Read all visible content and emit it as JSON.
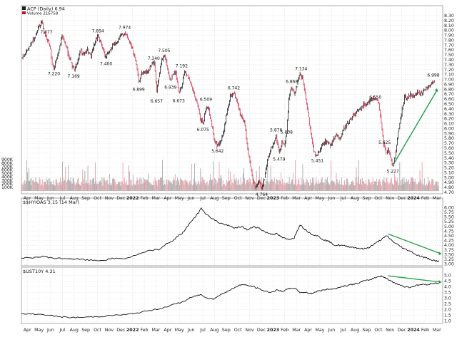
{
  "chart_data": [
    {
      "type": "candlestick",
      "title": "ACP (Daily) 6.94",
      "volume_label": "Volume 216758",
      "y_ticks": [
        "8.30",
        "8.20",
        "8.10",
        "8.00",
        "7.90",
        "7.80",
        "7.70",
        "7.60",
        "7.50",
        "7.40",
        "7.30",
        "7.20",
        "7.10",
        "7.00",
        "6.90",
        "6.80",
        "6.70",
        "6.60",
        "6.50",
        "6.40",
        "6.30",
        "6.20",
        "6.10",
        "6.00",
        "5.90",
        "5.80",
        "5.70",
        "5.60",
        "5.50",
        "5.40",
        "5.30",
        "5.20",
        "5.10",
        "5.00",
        "4.90",
        "4.80",
        "4.70"
      ],
      "ylim": [
        4.7,
        8.3
      ],
      "volume_ticks": [
        "900K",
        "800K",
        "700K",
        "600K",
        "500K",
        "400K",
        "300K",
        "200K",
        "100K"
      ],
      "volume_max": 900000,
      "price_path": [
        [
          0,
          7.45
        ],
        [
          0.8,
          7.55
        ],
        [
          1.6,
          7.7
        ],
        [
          2.4,
          7.9
        ],
        [
          3.0,
          8.1
        ],
        [
          3.5,
          8.18
        ],
        [
          4.0,
          7.95
        ],
        [
          4.5,
          7.8
        ],
        [
          5.0,
          7.6
        ],
        [
          5.3,
          7.3
        ],
        [
          5.6,
          7.22
        ],
        [
          6.0,
          7.4
        ],
        [
          6.5,
          7.6
        ],
        [
          7.0,
          7.88
        ],
        [
          7.5,
          7.75
        ],
        [
          8.0,
          7.55
        ],
        [
          8.5,
          7.35
        ],
        [
          9.0,
          7.2
        ],
        [
          9.5,
          7.3
        ],
        [
          10.2,
          7.6
        ],
        [
          10.8,
          7.5
        ],
        [
          11.4,
          7.6
        ],
        [
          12.0,
          7.45
        ],
        [
          12.5,
          7.7
        ],
        [
          13.2,
          7.9
        ],
        [
          13.8,
          7.7
        ],
        [
          14.5,
          7.45
        ],
        [
          15.2,
          7.6
        ],
        [
          15.8,
          7.7
        ],
        [
          16.5,
          7.75
        ],
        [
          17.2,
          7.9
        ],
        [
          17.8,
          7.95
        ],
        [
          18.5,
          7.8
        ],
        [
          19.2,
          7.6
        ],
        [
          19.8,
          7.3
        ],
        [
          20.2,
          6.95
        ],
        [
          20.6,
          7.1
        ],
        [
          21.2,
          7.15
        ],
        [
          21.8,
          7.15
        ],
        [
          22.4,
          7.3
        ],
        [
          22.9,
          7.35
        ],
        [
          23.3,
          6.75
        ],
        [
          23.7,
          7.05
        ],
        [
          24.2,
          7.4
        ],
        [
          24.7,
          7.5
        ],
        [
          25.2,
          7.2
        ],
        [
          25.7,
          7.0
        ],
        [
          26.1,
          7.1
        ],
        [
          26.6,
          7.15
        ],
        [
          27.1,
          6.75
        ],
        [
          27.6,
          6.85
        ],
        [
          28.1,
          7.15
        ],
        [
          28.6,
          7.1
        ],
        [
          29.0,
          6.95
        ],
        [
          29.5,
          6.8
        ],
        [
          30.0,
          6.6
        ],
        [
          30.4,
          6.45
        ],
        [
          30.8,
          6.2
        ],
        [
          31.3,
          6.1
        ],
        [
          31.8,
          6.45
        ],
        [
          32.3,
          6.4
        ],
        [
          32.7,
          6.15
        ],
        [
          33.2,
          5.8
        ],
        [
          33.7,
          5.65
        ],
        [
          34.2,
          5.7
        ],
        [
          34.8,
          5.9
        ],
        [
          35.4,
          6.3
        ],
        [
          36.0,
          6.65
        ],
        [
          36.6,
          6.72
        ],
        [
          37.2,
          6.5
        ],
        [
          37.8,
          6.25
        ],
        [
          38.4,
          6.15
        ],
        [
          39.0,
          5.6
        ],
        [
          39.5,
          5.2
        ],
        [
          40.0,
          4.9
        ],
        [
          40.4,
          4.8
        ],
        [
          40.9,
          4.95
        ],
        [
          41.4,
          4.76
        ],
        [
          41.9,
          5.0
        ],
        [
          42.4,
          5.35
        ],
        [
          42.9,
          5.55
        ],
        [
          43.4,
          5.7
        ],
        [
          43.9,
          5.85
        ],
        [
          44.4,
          5.5
        ],
        [
          44.9,
          5.75
        ],
        [
          45.3,
          5.65
        ],
        [
          45.7,
          5.9
        ],
        [
          46.1,
          6.6
        ],
        [
          46.5,
          6.85
        ],
        [
          47.0,
          6.7
        ],
        [
          47.5,
          6.9
        ],
        [
          48.0,
          7.1
        ],
        [
          48.5,
          7.0
        ],
        [
          49.0,
          6.6
        ],
        [
          49.5,
          6.2
        ],
        [
          50.0,
          5.8
        ],
        [
          50.5,
          5.5
        ],
        [
          51.0,
          5.45
        ],
        [
          51.5,
          5.55
        ],
        [
          52.0,
          5.7
        ],
        [
          52.6,
          5.75
        ],
        [
          53.2,
          5.65
        ],
        [
          53.8,
          5.8
        ],
        [
          54.4,
          5.85
        ],
        [
          55.0,
          5.8
        ],
        [
          55.6,
          6.0
        ],
        [
          56.2,
          6.1
        ],
        [
          56.8,
          6.2
        ],
        [
          57.4,
          6.3
        ],
        [
          58.0,
          6.35
        ],
        [
          58.6,
          6.45
        ],
        [
          59.2,
          6.5
        ],
        [
          59.8,
          6.55
        ],
        [
          60.4,
          6.6
        ],
        [
          61.0,
          6.62
        ],
        [
          61.6,
          6.5
        ],
        [
          62.0,
          6.1
        ],
        [
          62.4,
          5.7
        ],
        [
          62.8,
          5.5
        ],
        [
          63.2,
          5.6
        ],
        [
          63.6,
          5.4
        ],
        [
          64.0,
          5.25
        ],
        [
          64.4,
          5.45
        ],
        [
          64.8,
          5.8
        ],
        [
          65.2,
          6.1
        ],
        [
          65.6,
          6.4
        ],
        [
          66.0,
          6.65
        ],
        [
          66.5,
          6.6
        ],
        [
          67.0,
          6.7
        ],
        [
          67.5,
          6.65
        ],
        [
          68.0,
          6.7
        ],
        [
          68.5,
          6.75
        ],
        [
          69.0,
          6.7
        ],
        [
          69.5,
          6.8
        ],
        [
          70.0,
          6.85
        ],
        [
          70.6,
          6.9
        ],
        [
          71.2,
          6.97
        ]
      ],
      "annotations": [
        {
          "label": "7.877",
          "x": 4.3,
          "y": 7.88,
          "pos": "above"
        },
        {
          "label": "7.220",
          "x": 5.6,
          "y": 7.22,
          "pos": "below"
        },
        {
          "label": "7.169",
          "x": 9.0,
          "y": 7.17,
          "pos": "below"
        },
        {
          "label": "7.894",
          "x": 13.2,
          "y": 7.9,
          "pos": "above"
        },
        {
          "label": "7.400",
          "x": 14.6,
          "y": 7.42,
          "pos": "below"
        },
        {
          "label": "7.974",
          "x": 17.8,
          "y": 7.97,
          "pos": "above"
        },
        {
          "label": "6.899",
          "x": 20.2,
          "y": 6.9,
          "pos": "below"
        },
        {
          "label": "7.340",
          "x": 22.8,
          "y": 7.34,
          "pos": "above"
        },
        {
          "label": "7.505",
          "x": 24.6,
          "y": 7.5,
          "pos": "above"
        },
        {
          "label": "6.657",
          "x": 23.3,
          "y": 6.66,
          "pos": "below"
        },
        {
          "label": "6.939",
          "x": 25.7,
          "y": 6.94,
          "pos": "below"
        },
        {
          "label": "7.192",
          "x": 27.6,
          "y": 7.19,
          "pos": "above"
        },
        {
          "label": "6.673",
          "x": 27.1,
          "y": 6.67,
          "pos": "below"
        },
        {
          "label": "6.509",
          "x": 31.8,
          "y": 6.51,
          "pos": "above"
        },
        {
          "label": "6.075",
          "x": 31.3,
          "y": 6.08,
          "pos": "below"
        },
        {
          "label": "6.742",
          "x": 36.6,
          "y": 6.74,
          "pos": "above"
        },
        {
          "label": "5.642",
          "x": 33.8,
          "y": 5.64,
          "pos": "below"
        },
        {
          "label": "5.876",
          "x": 43.9,
          "y": 5.88,
          "pos": "above"
        },
        {
          "label": "5.838",
          "x": 45.7,
          "y": 5.84,
          "pos": "above"
        },
        {
          "label": "5.479",
          "x": 44.4,
          "y": 5.48,
          "pos": "below"
        },
        {
          "label": "6.868",
          "x": 46.6,
          "y": 6.87,
          "pos": "above"
        },
        {
          "label": "7.134",
          "x": 48.2,
          "y": 7.13,
          "pos": "above"
        },
        {
          "label": "5.451",
          "x": 51.0,
          "y": 5.45,
          "pos": "below"
        },
        {
          "label": "6.550",
          "x": 61.0,
          "y": 6.55,
          "pos": "above"
        },
        {
          "label": "5.625",
          "x": 62.6,
          "y": 5.63,
          "pos": "above"
        },
        {
          "label": "5.227",
          "x": 64.0,
          "y": 5.23,
          "pos": "below"
        },
        {
          "label": "4.764",
          "x": 41.4,
          "y": 4.76,
          "pos": "below"
        },
        {
          "label": "6.998",
          "x": 71.0,
          "y": 7.0,
          "pos": "above"
        }
      ],
      "trendline": {
        "from": [
          64.0,
          5.25
        ],
        "to": [
          71.6,
          6.78
        ],
        "color": "#22a045"
      },
      "up_color": "#000000",
      "down_color": "#c8102e"
    },
    {
      "type": "line",
      "title": "$$HYIOAS 3.15 (14 Mar)",
      "y_ticks": [
        "6.00",
        "5.75",
        "5.50",
        "5.25",
        "5.00",
        "4.75",
        "4.50",
        "4.25",
        "4.00",
        "3.75",
        "3.50",
        "3.25",
        "3.00"
      ],
      "ylim": [
        2.95,
        6.05
      ],
      "path": [
        [
          0,
          3.3
        ],
        [
          2,
          3.35
        ],
        [
          4,
          3.4
        ],
        [
          6,
          3.3
        ],
        [
          8,
          3.3
        ],
        [
          10,
          3.25
        ],
        [
          12,
          3.2
        ],
        [
          14,
          3.2
        ],
        [
          16,
          3.3
        ],
        [
          18,
          3.3
        ],
        [
          20,
          3.5
        ],
        [
          22,
          3.7
        ],
        [
          24,
          3.8
        ],
        [
          25,
          4.1
        ],
        [
          26,
          4.2
        ],
        [
          27,
          4.5
        ],
        [
          28,
          4.7
        ],
        [
          29,
          5.2
        ],
        [
          30,
          5.5
        ],
        [
          31,
          5.98
        ],
        [
          32,
          5.6
        ],
        [
          33,
          5.4
        ],
        [
          34,
          5.2
        ],
        [
          35,
          5.1
        ],
        [
          36,
          5.0
        ],
        [
          37,
          4.9
        ],
        [
          38,
          5.0
        ],
        [
          39,
          4.8
        ],
        [
          40,
          5.0
        ],
        [
          41,
          4.9
        ],
        [
          42,
          4.7
        ],
        [
          43,
          4.6
        ],
        [
          44,
          4.6
        ],
        [
          45,
          4.4
        ],
        [
          46,
          4.3
        ],
        [
          47,
          4.4
        ],
        [
          48,
          5.1
        ],
        [
          49,
          4.8
        ],
        [
          50,
          4.6
        ],
        [
          51,
          4.5
        ],
        [
          52,
          4.3
        ],
        [
          53,
          4.2
        ],
        [
          54,
          4.0
        ],
        [
          55,
          4.0
        ],
        [
          56,
          3.95
        ],
        [
          57,
          3.9
        ],
        [
          58,
          3.85
        ],
        [
          59,
          3.8
        ],
        [
          60,
          3.9
        ],
        [
          61,
          4.1
        ],
        [
          62,
          4.3
        ],
        [
          63,
          4.5
        ],
        [
          64,
          4.2
        ],
        [
          65,
          4.0
        ],
        [
          66,
          3.8
        ],
        [
          67,
          3.7
        ],
        [
          68,
          3.5
        ],
        [
          69,
          3.4
        ],
        [
          70,
          3.3
        ],
        [
          71,
          3.2
        ],
        [
          72,
          3.15
        ]
      ],
      "trendline": {
        "from": [
          63.2,
          4.6
        ],
        "to": [
          72.3,
          3.55
        ],
        "color": "#22a045"
      }
    },
    {
      "type": "line",
      "title": "$UST10Y 4.31",
      "y_ticks": [
        "5.0",
        "4.5",
        "4.0",
        "3.5",
        "3.0",
        "2.5",
        "2.0",
        "1.5",
        "1.0"
      ],
      "ylim": [
        0.9,
        5.15
      ],
      "path": [
        [
          0,
          1.6
        ],
        [
          2,
          1.6
        ],
        [
          4,
          1.55
        ],
        [
          6,
          1.4
        ],
        [
          8,
          1.3
        ],
        [
          10,
          1.3
        ],
        [
          12,
          1.35
        ],
        [
          14,
          1.4
        ],
        [
          16,
          1.5
        ],
        [
          18,
          1.55
        ],
        [
          20,
          1.7
        ],
        [
          22,
          1.9
        ],
        [
          24,
          2.1
        ],
        [
          26,
          2.4
        ],
        [
          28,
          2.7
        ],
        [
          29,
          3.0
        ],
        [
          30,
          3.2
        ],
        [
          31,
          3.3
        ],
        [
          32,
          3.0
        ],
        [
          33,
          2.9
        ],
        [
          34,
          3.2
        ],
        [
          35,
          3.5
        ],
        [
          36,
          3.7
        ],
        [
          37,
          4.0
        ],
        [
          38,
          4.2
        ],
        [
          39,
          4.1
        ],
        [
          40,
          4.0
        ],
        [
          41,
          3.8
        ],
        [
          42,
          3.6
        ],
        [
          43,
          3.5
        ],
        [
          44,
          3.7
        ],
        [
          45,
          3.6
        ],
        [
          46,
          3.8
        ],
        [
          47,
          3.9
        ],
        [
          48,
          3.5
        ],
        [
          49,
          3.5
        ],
        [
          50,
          3.4
        ],
        [
          51,
          3.6
        ],
        [
          52,
          3.7
        ],
        [
          53,
          3.8
        ],
        [
          54,
          3.8
        ],
        [
          55,
          4.0
        ],
        [
          56,
          4.1
        ],
        [
          57,
          4.2
        ],
        [
          58,
          4.3
        ],
        [
          59,
          4.5
        ],
        [
          60,
          4.6
        ],
        [
          61,
          4.8
        ],
        [
          62,
          4.95
        ],
        [
          63,
          4.7
        ],
        [
          64,
          4.4
        ],
        [
          65,
          4.2
        ],
        [
          66,
          4.0
        ],
        [
          67,
          3.95
        ],
        [
          68,
          4.1
        ],
        [
          69,
          4.2
        ],
        [
          70,
          4.2
        ],
        [
          71,
          4.3
        ],
        [
          72,
          4.31
        ]
      ],
      "trendline": {
        "from": [
          63.2,
          4.95
        ],
        "to": [
          72.3,
          4.4
        ],
        "color": "#22a045"
      }
    }
  ],
  "x_axis": {
    "labels": [
      "Apr",
      "May",
      "Jun",
      "Jul",
      "Aug",
      "Sep",
      "Oct",
      "Nov",
      "Dec",
      "2022",
      "Feb",
      "Mar",
      "Apr",
      "May",
      "Jun",
      "Jul",
      "Aug",
      "Sep",
      "Oct",
      "Nov",
      "Dec",
      "2023",
      "Feb",
      "Mar",
      "Apr",
      "May",
      "Jun",
      "Jul",
      "Aug",
      "Sep",
      "Oct",
      "Nov",
      "Dec",
      "2024",
      "Feb",
      "Mar"
    ],
    "bold": [
      "2022",
      "2023",
      "2024"
    ]
  }
}
